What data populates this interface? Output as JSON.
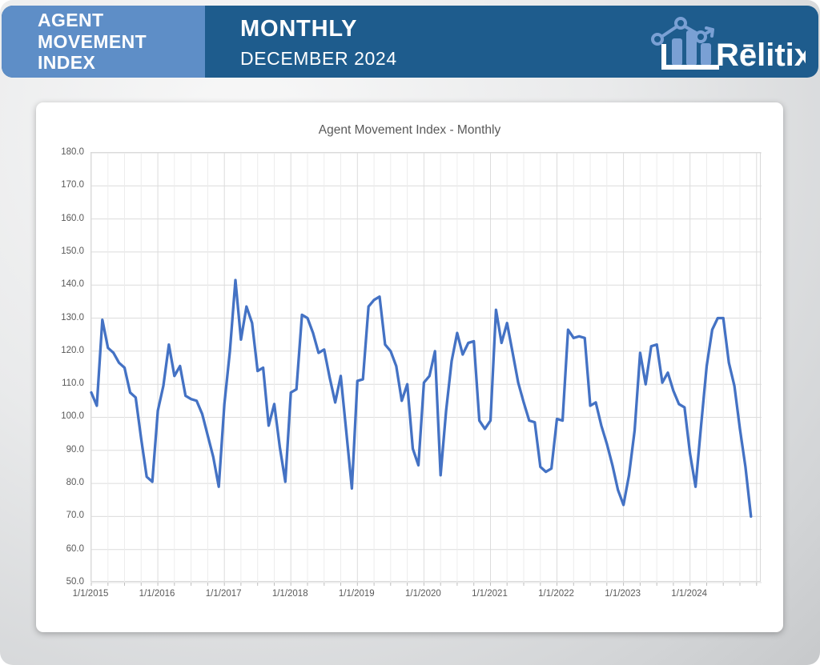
{
  "header": {
    "product_title": "AGENT MOVEMENT INDEX",
    "period_type": "MONTHLY",
    "period_date": "DECEMBER 2024",
    "brand": "Rēlitix.",
    "colors": {
      "bar_dark_blue": "#1E5C8D",
      "box_light_blue": "#5E8EC7",
      "logo_accent_blue": "#7AA0D4"
    }
  },
  "chart_data": {
    "type": "line",
    "title": "Agent Movement Index - Monthly",
    "series_name": "Agent Movement Index",
    "start_month": "1/1/2015",
    "frequency": "monthly",
    "x_tick_labels": [
      "1/1/2015",
      "1/1/2016",
      "1/1/2017",
      "1/1/2018",
      "1/1/2019",
      "1/1/2020",
      "1/1/2021",
      "1/1/2022",
      "1/1/2023",
      "1/1/2024"
    ],
    "y_ticks": [
      180,
      170,
      160,
      150,
      140,
      130,
      120,
      110,
      100,
      90,
      80,
      70,
      60,
      50
    ],
    "ylim": [
      50,
      180
    ],
    "grid": true,
    "legend": "none",
    "line_color": "#4472C4",
    "gridline_minor_color": "#ECECEC",
    "gridline_major_color": "#DCDCDC",
    "axis_text_color": "#595959",
    "values": [
      107.5,
      103.5,
      129.5,
      121.0,
      119.5,
      116.5,
      115.0,
      107.5,
      106.0,
      93.5,
      82.0,
      80.5,
      102.0,
      109.5,
      122.0,
      112.5,
      115.5,
      106.5,
      105.5,
      105.0,
      101.0,
      94.5,
      88.0,
      79.0,
      104.0,
      120.0,
      141.5,
      123.5,
      133.5,
      128.5,
      114.0,
      115.0,
      97.5,
      104.0,
      91.0,
      80.5,
      107.5,
      108.5,
      131.0,
      130.0,
      125.5,
      119.5,
      120.5,
      112.0,
      104.5,
      112.5,
      95.5,
      78.5,
      111.0,
      111.5,
      133.5,
      135.5,
      136.5,
      122.0,
      120.0,
      115.5,
      105.0,
      110.0,
      90.5,
      85.5,
      110.5,
      112.5,
      120.0,
      82.5,
      102.0,
      117.0,
      125.5,
      119.0,
      122.5,
      123.0,
      99.0,
      96.5,
      99.0,
      132.5,
      122.5,
      128.5,
      119.5,
      110.5,
      104.5,
      99.0,
      98.5,
      85.0,
      83.5,
      84.5,
      99.5,
      99.0,
      126.5,
      124.0,
      124.5,
      124.0,
      103.5,
      104.5,
      97.5,
      92.0,
      85.5,
      78.0,
      73.5,
      82.5,
      96.0,
      119.5,
      110.0,
      121.5,
      122.0,
      110.5,
      113.5,
      108.0,
      104.0,
      103.0,
      89.0,
      79.0,
      97.5,
      115.5,
      126.5,
      130.0,
      130.0,
      116.5,
      109.5,
      96.5,
      85.0,
      70.0
    ]
  }
}
